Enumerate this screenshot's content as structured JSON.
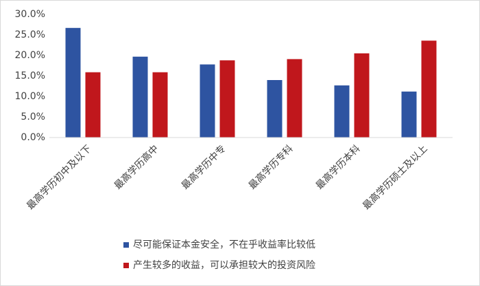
{
  "chart_data": {
    "type": "bar",
    "categories": [
      "最高学历初中及以下",
      "最高学历高中",
      "最高学历中专",
      "最高学历专科",
      "最高学历本科",
      "最高学历硕士及以上"
    ],
    "series": [
      {
        "name": "尽可能保证本金安全，不在乎收益率比较低",
        "color": "#2e54a1",
        "values": [
          26.7,
          19.7,
          17.8,
          14.0,
          12.7,
          11.2
        ]
      },
      {
        "name": "产生较多的收益，可以承担较大的投资风险",
        "color": "#c0171c",
        "values": [
          15.9,
          15.9,
          18.8,
          19.1,
          20.5,
          23.6
        ]
      }
    ],
    "ylim": [
      0,
      30
    ],
    "yticks": [
      {
        "value": 0,
        "label": "0.0%"
      },
      {
        "value": 5,
        "label": "5.0%"
      },
      {
        "value": 10,
        "label": "10.0%"
      },
      {
        "value": 15,
        "label": "15.0%"
      },
      {
        "value": 20,
        "label": "20.0%"
      },
      {
        "value": 25,
        "label": "25.0%"
      },
      {
        "value": 30,
        "label": "30.0%"
      }
    ],
    "grid": false,
    "legend": "bottom"
  }
}
